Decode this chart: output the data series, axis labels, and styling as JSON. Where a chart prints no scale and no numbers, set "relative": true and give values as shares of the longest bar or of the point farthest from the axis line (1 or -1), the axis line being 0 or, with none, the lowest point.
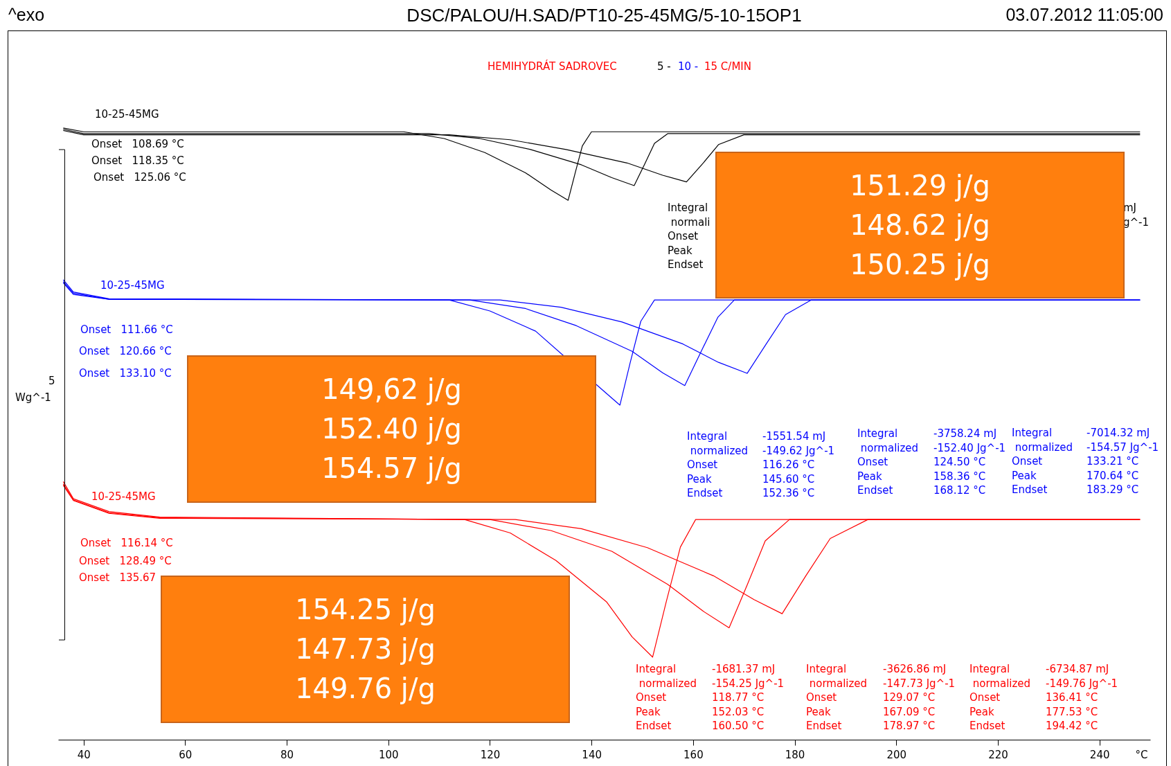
{
  "chart_data": {
    "type": "line",
    "title": "DSC/PALOU/H.SAD/PT10-25-45MG/5-10-15OP1",
    "xlabel": "°C",
    "relative": true,
    "xlim": [
      35,
      250
    ],
    "xticks": [
      40,
      60,
      80,
      100,
      120,
      140,
      160,
      180,
      200,
      220,
      240
    ],
    "series": [
      {
        "name": "10-25-45MG",
        "color": "#000000",
        "x": [
          36,
          40,
          103,
          111,
          119,
          127,
          132,
          135.4,
          136.8,
          138.2,
          140,
          248
        ],
        "values": [
          1.0,
          0.994,
          0.994,
          0.983,
          0.96,
          0.927,
          0.899,
          0.882,
          0.927,
          0.971,
          0.994,
          0.994
        ]
      },
      {
        "color": "#000000",
        "x": [
          36,
          40,
          108,
          118,
          128,
          138,
          144,
          148.4,
          150.4,
          152.4,
          155,
          248
        ],
        "values": [
          0.998,
          0.991,
          0.991,
          0.983,
          0.965,
          0.94,
          0.919,
          0.906,
          0.94,
          0.975,
          0.991,
          0.991
        ]
      },
      {
        "color": "#000000",
        "x": [
          36,
          40,
          112,
          124,
          135,
          147,
          154,
          158.7,
          162,
          165,
          170,
          248
        ],
        "values": [
          0.996,
          0.989,
          0.989,
          0.981,
          0.965,
          0.943,
          0.923,
          0.912,
          0.943,
          0.973,
          0.989,
          0.989
        ]
      },
      {
        "name": "10-25-45MG",
        "color": "#0000ff",
        "x": [
          36,
          38,
          45,
          112,
          120,
          129,
          142,
          145.6,
          147.6,
          149.7,
          152.4,
          248
        ],
        "values": [
          0.752,
          0.732,
          0.721,
          0.719,
          0.701,
          0.668,
          0.573,
          0.547,
          0.616,
          0.684,
          0.719,
          0.719
        ]
      },
      {
        "color": "#0000ff",
        "x": [
          36,
          38,
          45,
          116,
          127,
          137,
          148,
          154,
          158.36,
          161.6,
          164.9,
          168.12,
          248
        ],
        "values": [
          0.749,
          0.73,
          0.72,
          0.719,
          0.705,
          0.677,
          0.635,
          0.6,
          0.579,
          0.635,
          0.691,
          0.719,
          0.719
        ]
      },
      {
        "color": "#0000ff",
        "x": [
          36,
          38,
          45,
          122,
          134,
          146,
          158,
          165,
          170.64,
          174.4,
          178.2,
          183.29,
          248
        ],
        "values": [
          0.747,
          0.728,
          0.72,
          0.719,
          0.707,
          0.683,
          0.647,
          0.617,
          0.599,
          0.647,
          0.695,
          0.719,
          0.719
        ]
      },
      {
        "name": "10-25-45MG",
        "color": "#ff0000",
        "x": [
          36,
          38,
          45,
          55,
          115,
          124,
          133,
          143,
          148,
          152.03,
          154.7,
          157.5,
          160.5,
          248
        ],
        "values": [
          0.422,
          0.394,
          0.373,
          0.364,
          0.36,
          0.338,
          0.293,
          0.225,
          0.168,
          0.135,
          0.225,
          0.315,
          0.36,
          0.36
        ]
      },
      {
        "color": "#ff0000",
        "x": [
          36,
          38,
          45,
          55,
          120,
          132,
          144,
          155,
          162,
          167.09,
          170.7,
          174.2,
          178.97,
          248
        ],
        "values": [
          0.418,
          0.392,
          0.371,
          0.363,
          0.36,
          0.342,
          0.308,
          0.254,
          0.21,
          0.183,
          0.254,
          0.325,
          0.36,
          0.36
        ]
      },
      {
        "color": "#ff0000",
        "x": [
          36,
          38,
          45,
          55,
          125,
          138,
          151,
          164,
          172,
          177.53,
          182.2,
          187,
          194.42,
          248
        ],
        "values": [
          0.416,
          0.391,
          0.37,
          0.362,
          0.36,
          0.345,
          0.314,
          0.268,
          0.229,
          0.206,
          0.268,
          0.329,
          0.36,
          0.36
        ]
      }
    ],
    "annotations": [
      "^exo",
      "03.07.2012 11:05:00",
      "HEMIHYDRÁT SADROVEC",
      "5 -",
      "10 -",
      "15 C/MIN",
      "5",
      "Wg^-1",
      "Onset   108.69 °C",
      "Onset   118.35 °C",
      "Onset   125.06 °C",
      "Integral\n normali\nOnset\nPeak\nEndset",
      "mJ",
      "g^-1",
      "Onset   111.66 °C",
      "Onset   120.66 °C",
      "Onset   133.10 °C",
      "Integral\n normalized\nOnset\nPeak\nEndset",
      "-1551.54 mJ\n-149.62 Jg^-1\n116.26 °C\n145.60 °C\n152.36 °C",
      "Integral\n normalized\nOnset\nPeak\nEndset",
      "-3758.24 mJ\n-152.40 Jg^-1\n124.50 °C\n158.36 °C\n168.12 °C",
      "Integral\n normalized\nOnset\nPeak\nEndset",
      "-7014.32 mJ\n-154.57 Jg^-1\n133.21 °C\n170.64 °C\n183.29 °C",
      "Onset   116.14 °C",
      "Onset   128.49 °C",
      "Onset   135.67",
      "Integral\n normalized\nOnset\nPeak\nEndset",
      "-1681.37 mJ\n-154.25 Jg^-1\n118.77 °C\n152.03 °C\n160.50 °C",
      "Integral\n normalized\nOnset\nPeak\nEndset",
      "-3626.86 mJ\n-147.73 Jg^-1\n129.07 °C\n167.09 °C\n178.97 °C",
      "Integral\n normalized\nOnset\nPeak\nEndset",
      "-6734.87 mJ\n-149.76 Jg^-1\n136.41 °C\n177.53 °C\n194.42 °C",
      "151.29 j/g\n148.62 j/g\n150.25 j/g",
      "149,62 j/g\n152.40 j/g\n154.57 j/g",
      "154.25 j/g\n147.73 j/g\n149.76 j/g"
    ]
  }
}
